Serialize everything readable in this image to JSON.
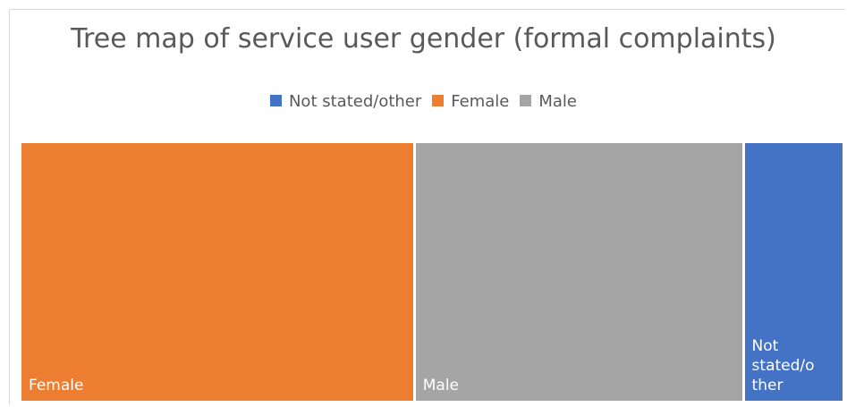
{
  "chart_data": {
    "type": "treemap",
    "title": "Tree map of service user gender (formal complaints)",
    "series": [
      {
        "name": "Not stated/other",
        "color": "#4472c4",
        "values": [
          12
        ]
      },
      {
        "name": "Female",
        "color": "#ed7d31",
        "values": [
          48
        ]
      },
      {
        "name": "Male",
        "color": "#a5a5a5",
        "values": [
          40
        ]
      }
    ]
  }
}
